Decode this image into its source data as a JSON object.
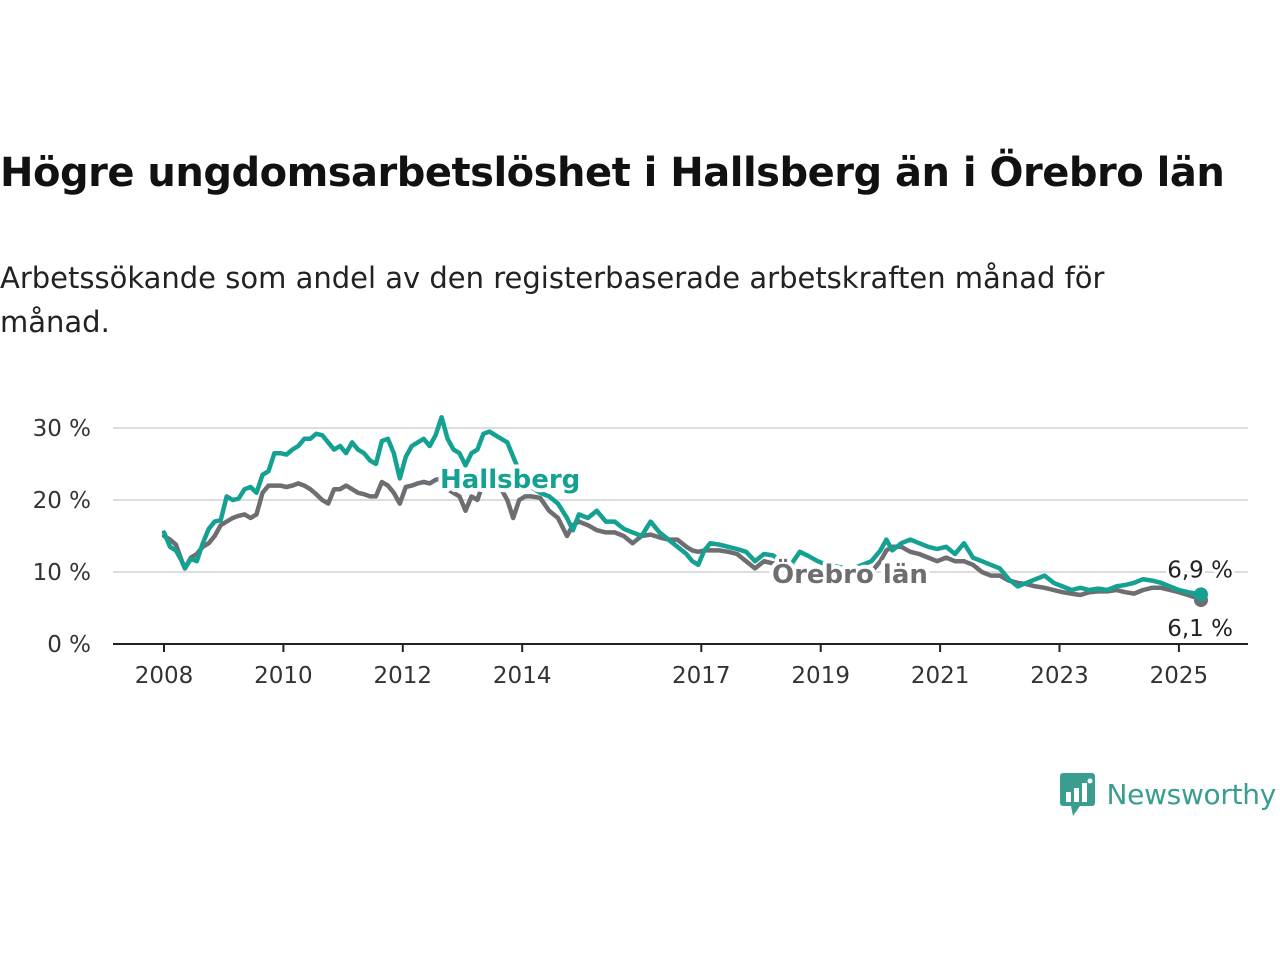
{
  "title": "Högre ungdomsarbetslöshet i Hallsberg än i Örebro län",
  "subtitle": "Arbetssökande som andel av den registerbaserade arbetskraften månad för månad.",
  "brand": {
    "name": "Newsworthy",
    "icon": "newsworthy-logo-icon",
    "color": "#3a9d8f"
  },
  "chart_data": {
    "type": "line",
    "title": "Högre ungdomsarbetslöshet i Hallsberg än i Örebro län",
    "subtitle": "Arbetssökande som andel av den registerbaserade arbetskraften månad för månad.",
    "xlabel": "",
    "ylabel": "",
    "x_ticks": [
      "2008",
      "2010",
      "2012",
      "2014",
      "2017",
      "2019",
      "2021",
      "2023",
      "2025"
    ],
    "xlim": [
      2008,
      2025.6
    ],
    "y_ticks": [
      0,
      10,
      20,
      30
    ],
    "y_tick_labels": [
      "0 %",
      "10 %",
      "20 %",
      "30 %"
    ],
    "ylim": [
      0,
      32
    ],
    "grid": true,
    "legend": "direct labels on lines",
    "series": [
      {
        "name": "Hallsberg",
        "color": "#14a192",
        "end_label": "6,9 %",
        "points": [
          [
            2008.0,
            15.5
          ],
          [
            2008.1,
            13.5
          ],
          [
            2008.2,
            13.0
          ],
          [
            2008.3,
            11.5
          ],
          [
            2008.35,
            10.5
          ],
          [
            2008.45,
            11.8
          ],
          [
            2008.55,
            11.5
          ],
          [
            2008.65,
            14.0
          ],
          [
            2008.75,
            16.0
          ],
          [
            2008.85,
            17.0
          ],
          [
            2008.95,
            17.2
          ],
          [
            2009.05,
            20.5
          ],
          [
            2009.15,
            20.0
          ],
          [
            2009.25,
            20.2
          ],
          [
            2009.35,
            21.5
          ],
          [
            2009.45,
            21.8
          ],
          [
            2009.55,
            21.0
          ],
          [
            2009.65,
            23.5
          ],
          [
            2009.75,
            24.0
          ],
          [
            2009.85,
            26.5
          ],
          [
            2009.95,
            26.5
          ],
          [
            2010.05,
            26.3
          ],
          [
            2010.15,
            27.0
          ],
          [
            2010.25,
            27.5
          ],
          [
            2010.35,
            28.5
          ],
          [
            2010.45,
            28.5
          ],
          [
            2010.55,
            29.2
          ],
          [
            2010.65,
            29.0
          ],
          [
            2010.75,
            28.0
          ],
          [
            2010.85,
            27.0
          ],
          [
            2010.95,
            27.5
          ],
          [
            2011.05,
            26.5
          ],
          [
            2011.15,
            28.0
          ],
          [
            2011.25,
            27.0
          ],
          [
            2011.35,
            26.5
          ],
          [
            2011.45,
            25.5
          ],
          [
            2011.55,
            25.0
          ],
          [
            2011.65,
            28.2
          ],
          [
            2011.75,
            28.5
          ],
          [
            2011.85,
            26.5
          ],
          [
            2011.95,
            23.0
          ],
          [
            2012.05,
            26.0
          ],
          [
            2012.15,
            27.5
          ],
          [
            2012.25,
            28.0
          ],
          [
            2012.35,
            28.5
          ],
          [
            2012.45,
            27.5
          ],
          [
            2012.55,
            29.0
          ],
          [
            2012.65,
            31.5
          ],
          [
            2012.75,
            28.5
          ],
          [
            2012.85,
            27.0
          ],
          [
            2012.95,
            26.5
          ],
          [
            2013.05,
            24.8
          ],
          [
            2013.15,
            26.5
          ],
          [
            2013.25,
            27.0
          ],
          [
            2013.35,
            29.2
          ],
          [
            2013.45,
            29.5
          ],
          [
            2013.55,
            29.0
          ],
          [
            2013.65,
            28.5
          ],
          [
            2013.75,
            28.0
          ],
          [
            2013.85,
            26.0
          ],
          [
            2013.95,
            24.0
          ],
          [
            2014.05,
            22.5
          ],
          [
            2014.15,
            21.8
          ],
          [
            2014.3,
            21.0
          ],
          [
            2014.45,
            20.5
          ],
          [
            2014.6,
            19.5
          ],
          [
            2014.75,
            17.5
          ],
          [
            2014.85,
            15.8
          ],
          [
            2014.95,
            18.0
          ],
          [
            2015.1,
            17.5
          ],
          [
            2015.25,
            18.5
          ],
          [
            2015.4,
            17.0
          ],
          [
            2015.55,
            17.0
          ],
          [
            2015.7,
            16.0
          ],
          [
            2015.85,
            15.5
          ],
          [
            2016.0,
            15.0
          ],
          [
            2016.15,
            17.0
          ],
          [
            2016.3,
            15.5
          ],
          [
            2016.45,
            14.5
          ],
          [
            2016.6,
            13.5
          ],
          [
            2016.75,
            12.5
          ],
          [
            2016.85,
            11.5
          ],
          [
            2016.95,
            11.0
          ],
          [
            2017.05,
            13.0
          ],
          [
            2017.15,
            14.0
          ],
          [
            2017.3,
            13.8
          ],
          [
            2017.45,
            13.5
          ],
          [
            2017.6,
            13.2
          ],
          [
            2017.75,
            12.8
          ],
          [
            2017.9,
            11.5
          ],
          [
            2018.05,
            12.5
          ],
          [
            2018.2,
            12.3
          ],
          [
            2018.35,
            11.5
          ],
          [
            2018.5,
            11.0
          ],
          [
            2018.65,
            12.8
          ],
          [
            2018.8,
            12.2
          ],
          [
            2018.95,
            11.5
          ],
          [
            2019.1,
            11.0
          ],
          [
            2019.25,
            10.8
          ],
          [
            2019.4,
            10.5
          ],
          [
            2019.55,
            10.5
          ],
          [
            2019.7,
            11.0
          ],
          [
            2019.85,
            11.5
          ],
          [
            2020.0,
            13.0
          ],
          [
            2020.1,
            14.5
          ],
          [
            2020.2,
            13.0
          ],
          [
            2020.35,
            14.0
          ],
          [
            2020.5,
            14.5
          ],
          [
            2020.65,
            14.0
          ],
          [
            2020.8,
            13.5
          ],
          [
            2020.95,
            13.2
          ],
          [
            2021.1,
            13.5
          ],
          [
            2021.25,
            12.5
          ],
          [
            2021.4,
            14.0
          ],
          [
            2021.55,
            12.0
          ],
          [
            2021.7,
            11.5
          ],
          [
            2021.85,
            11.0
          ],
          [
            2022.0,
            10.5
          ],
          [
            2022.15,
            9.0
          ],
          [
            2022.3,
            8.0
          ],
          [
            2022.45,
            8.5
          ],
          [
            2022.6,
            9.0
          ],
          [
            2022.75,
            9.5
          ],
          [
            2022.9,
            8.5
          ],
          [
            2023.05,
            8.0
          ],
          [
            2023.2,
            7.5
          ],
          [
            2023.35,
            7.8
          ],
          [
            2023.5,
            7.5
          ],
          [
            2023.65,
            7.7
          ],
          [
            2023.8,
            7.5
          ],
          [
            2023.95,
            8.0
          ],
          [
            2024.1,
            8.2
          ],
          [
            2024.25,
            8.5
          ],
          [
            2024.4,
            9.0
          ],
          [
            2024.55,
            8.8
          ],
          [
            2024.7,
            8.5
          ],
          [
            2024.85,
            8.0
          ],
          [
            2025.0,
            7.5
          ],
          [
            2025.15,
            7.2
          ],
          [
            2025.3,
            7.0
          ],
          [
            2025.37,
            6.9
          ]
        ]
      },
      {
        "name": "Örebro län",
        "color": "#6e6d72",
        "end_label": "6,1 %",
        "points": [
          [
            2008.0,
            15.0
          ],
          [
            2008.1,
            14.5
          ],
          [
            2008.2,
            13.8
          ],
          [
            2008.3,
            11.5
          ],
          [
            2008.35,
            10.5
          ],
          [
            2008.45,
            12.0
          ],
          [
            2008.55,
            12.5
          ],
          [
            2008.65,
            13.5
          ],
          [
            2008.75,
            14.0
          ],
          [
            2008.85,
            15.0
          ],
          [
            2008.95,
            16.5
          ],
          [
            2009.05,
            17.0
          ],
          [
            2009.15,
            17.5
          ],
          [
            2009.25,
            17.8
          ],
          [
            2009.35,
            18.0
          ],
          [
            2009.45,
            17.5
          ],
          [
            2009.55,
            18.0
          ],
          [
            2009.65,
            21.0
          ],
          [
            2009.75,
            22.0
          ],
          [
            2009.85,
            22.0
          ],
          [
            2009.95,
            22.0
          ],
          [
            2010.05,
            21.8
          ],
          [
            2010.15,
            22.0
          ],
          [
            2010.25,
            22.3
          ],
          [
            2010.35,
            22.0
          ],
          [
            2010.45,
            21.5
          ],
          [
            2010.55,
            20.8
          ],
          [
            2010.65,
            20.0
          ],
          [
            2010.75,
            19.5
          ],
          [
            2010.85,
            21.5
          ],
          [
            2010.95,
            21.5
          ],
          [
            2011.05,
            22.0
          ],
          [
            2011.15,
            21.5
          ],
          [
            2011.25,
            21.0
          ],
          [
            2011.35,
            20.8
          ],
          [
            2011.45,
            20.5
          ],
          [
            2011.55,
            20.5
          ],
          [
            2011.65,
            22.5
          ],
          [
            2011.75,
            22.0
          ],
          [
            2011.85,
            21.0
          ],
          [
            2011.95,
            19.5
          ],
          [
            2012.05,
            21.8
          ],
          [
            2012.15,
            22.0
          ],
          [
            2012.25,
            22.3
          ],
          [
            2012.35,
            22.5
          ],
          [
            2012.45,
            22.3
          ],
          [
            2012.55,
            22.8
          ],
          [
            2012.65,
            23.0
          ],
          [
            2012.75,
            21.5
          ],
          [
            2012.85,
            21.0
          ],
          [
            2012.95,
            20.5
          ],
          [
            2013.05,
            18.5
          ],
          [
            2013.15,
            20.5
          ],
          [
            2013.25,
            20.0
          ],
          [
            2013.35,
            22.5
          ],
          [
            2013.45,
            22.5
          ],
          [
            2013.55,
            22.0
          ],
          [
            2013.65,
            21.5
          ],
          [
            2013.75,
            20.0
          ],
          [
            2013.85,
            17.5
          ],
          [
            2013.95,
            20.0
          ],
          [
            2014.05,
            20.5
          ],
          [
            2014.15,
            20.5
          ],
          [
            2014.3,
            20.3
          ],
          [
            2014.45,
            18.5
          ],
          [
            2014.6,
            17.5
          ],
          [
            2014.75,
            15.0
          ],
          [
            2014.85,
            16.5
          ],
          [
            2014.95,
            17.0
          ],
          [
            2015.1,
            16.5
          ],
          [
            2015.25,
            15.8
          ],
          [
            2015.4,
            15.5
          ],
          [
            2015.55,
            15.5
          ],
          [
            2015.7,
            15.0
          ],
          [
            2015.85,
            14.0
          ],
          [
            2016.0,
            15.0
          ],
          [
            2016.15,
            15.2
          ],
          [
            2016.3,
            14.8
          ],
          [
            2016.45,
            14.5
          ],
          [
            2016.6,
            14.5
          ],
          [
            2016.75,
            13.5
          ],
          [
            2016.85,
            13.0
          ],
          [
            2016.95,
            12.8
          ],
          [
            2017.05,
            13.0
          ],
          [
            2017.15,
            13.0
          ],
          [
            2017.3,
            13.0
          ],
          [
            2017.45,
            12.8
          ],
          [
            2017.6,
            12.5
          ],
          [
            2017.75,
            11.5
          ],
          [
            2017.9,
            10.5
          ],
          [
            2018.05,
            11.5
          ],
          [
            2018.2,
            11.2
          ],
          [
            2018.35,
            11.0
          ],
          [
            2018.5,
            10.8
          ],
          [
            2018.65,
            10.5
          ],
          [
            2018.8,
            10.5
          ],
          [
            2018.95,
            10.0
          ],
          [
            2019.1,
            9.8
          ],
          [
            2019.25,
            9.5
          ],
          [
            2019.4,
            9.5
          ],
          [
            2019.55,
            9.8
          ],
          [
            2019.7,
            10.0
          ],
          [
            2019.85,
            10.0
          ],
          [
            2020.0,
            11.5
          ],
          [
            2020.1,
            13.0
          ],
          [
            2020.2,
            13.5
          ],
          [
            2020.35,
            13.5
          ],
          [
            2020.5,
            12.8
          ],
          [
            2020.65,
            12.5
          ],
          [
            2020.8,
            12.0
          ],
          [
            2020.95,
            11.5
          ],
          [
            2021.1,
            12.0
          ],
          [
            2021.25,
            11.5
          ],
          [
            2021.4,
            11.5
          ],
          [
            2021.55,
            11.0
          ],
          [
            2021.7,
            10.0
          ],
          [
            2021.85,
            9.5
          ],
          [
            2022.0,
            9.5
          ],
          [
            2022.15,
            8.8
          ],
          [
            2022.3,
            8.5
          ],
          [
            2022.45,
            8.3
          ],
          [
            2022.6,
            8.0
          ],
          [
            2022.75,
            7.8
          ],
          [
            2022.9,
            7.5
          ],
          [
            2023.05,
            7.2
          ],
          [
            2023.2,
            7.0
          ],
          [
            2023.35,
            6.8
          ],
          [
            2023.5,
            7.2
          ],
          [
            2023.65,
            7.3
          ],
          [
            2023.8,
            7.3
          ],
          [
            2023.95,
            7.5
          ],
          [
            2024.1,
            7.2
          ],
          [
            2024.25,
            7.0
          ],
          [
            2024.4,
            7.5
          ],
          [
            2024.55,
            7.8
          ],
          [
            2024.7,
            7.8
          ],
          [
            2024.85,
            7.5
          ],
          [
            2025.0,
            7.2
          ],
          [
            2025.15,
            6.8
          ],
          [
            2025.3,
            6.4
          ],
          [
            2025.37,
            6.1
          ]
        ]
      }
    ]
  }
}
